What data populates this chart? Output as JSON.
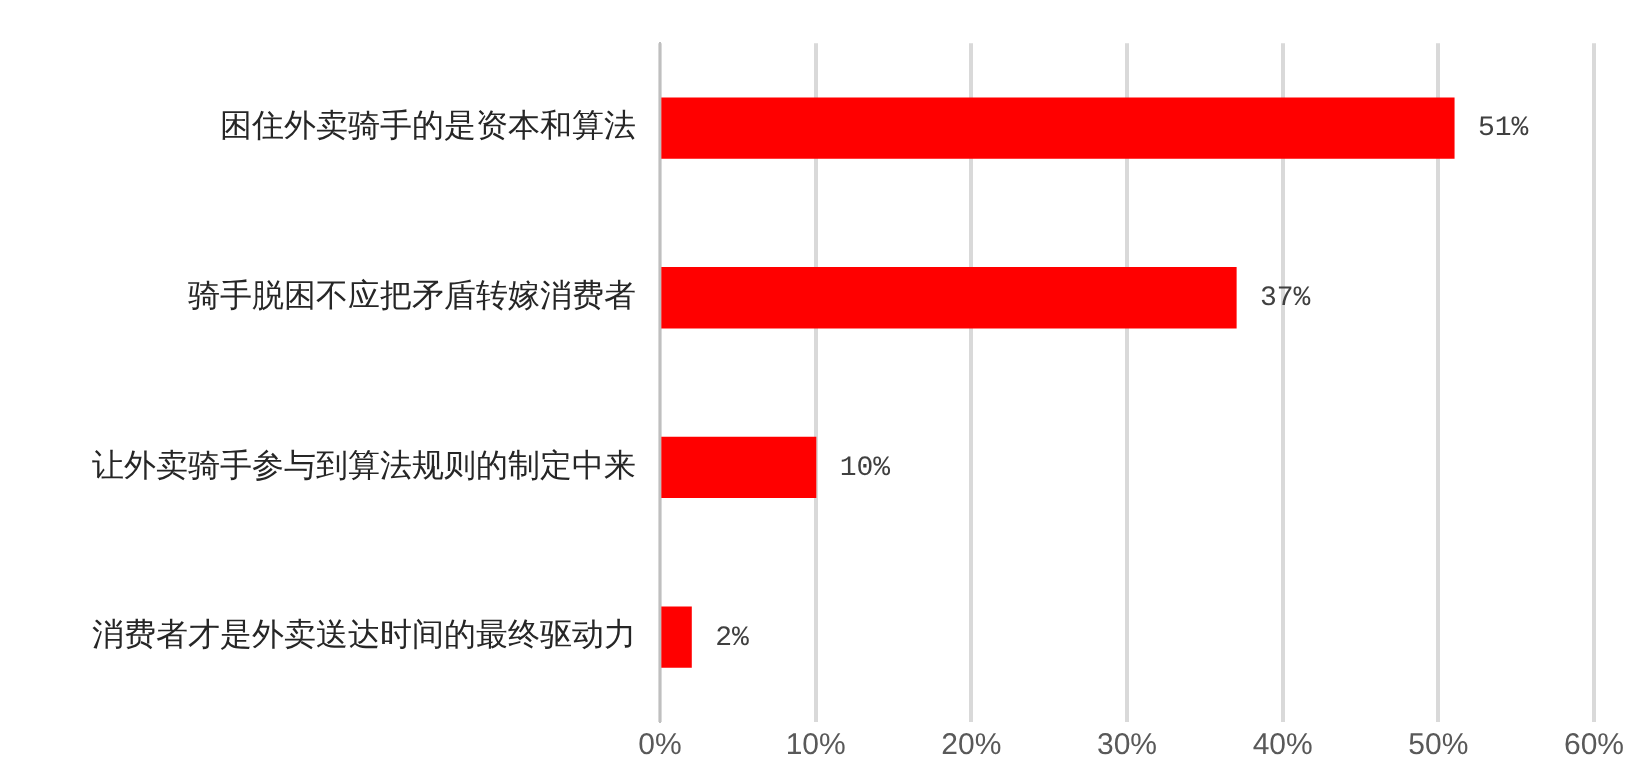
{
  "chart_data": {
    "type": "bar",
    "orientation": "horizontal",
    "categories": [
      "困住外卖骑手的是资本和算法",
      "骑手脱困不应把矛盾转嫁消费者",
      "让外卖骑手参与到算法规则的制定中来",
      "消费者才是外卖送达时间的最终驱动力"
    ],
    "values": [
      51,
      37,
      10,
      2
    ],
    "color": "#ff0000",
    "value_labels": [
      "51%",
      "37%",
      "10%",
      "2%"
    ],
    "xlim": [
      0,
      60
    ],
    "xticks": [
      {
        "value": 0,
        "label": "0%"
      },
      {
        "value": 10,
        "label": "10%"
      },
      {
        "value": 20,
        "label": "20%"
      },
      {
        "value": 30,
        "label": "30%"
      },
      {
        "value": 40,
        "label": "40%"
      },
      {
        "value": 50,
        "label": "50%"
      },
      {
        "value": 60,
        "label": "60%"
      }
    ],
    "grid": "x",
    "legend": false
  }
}
